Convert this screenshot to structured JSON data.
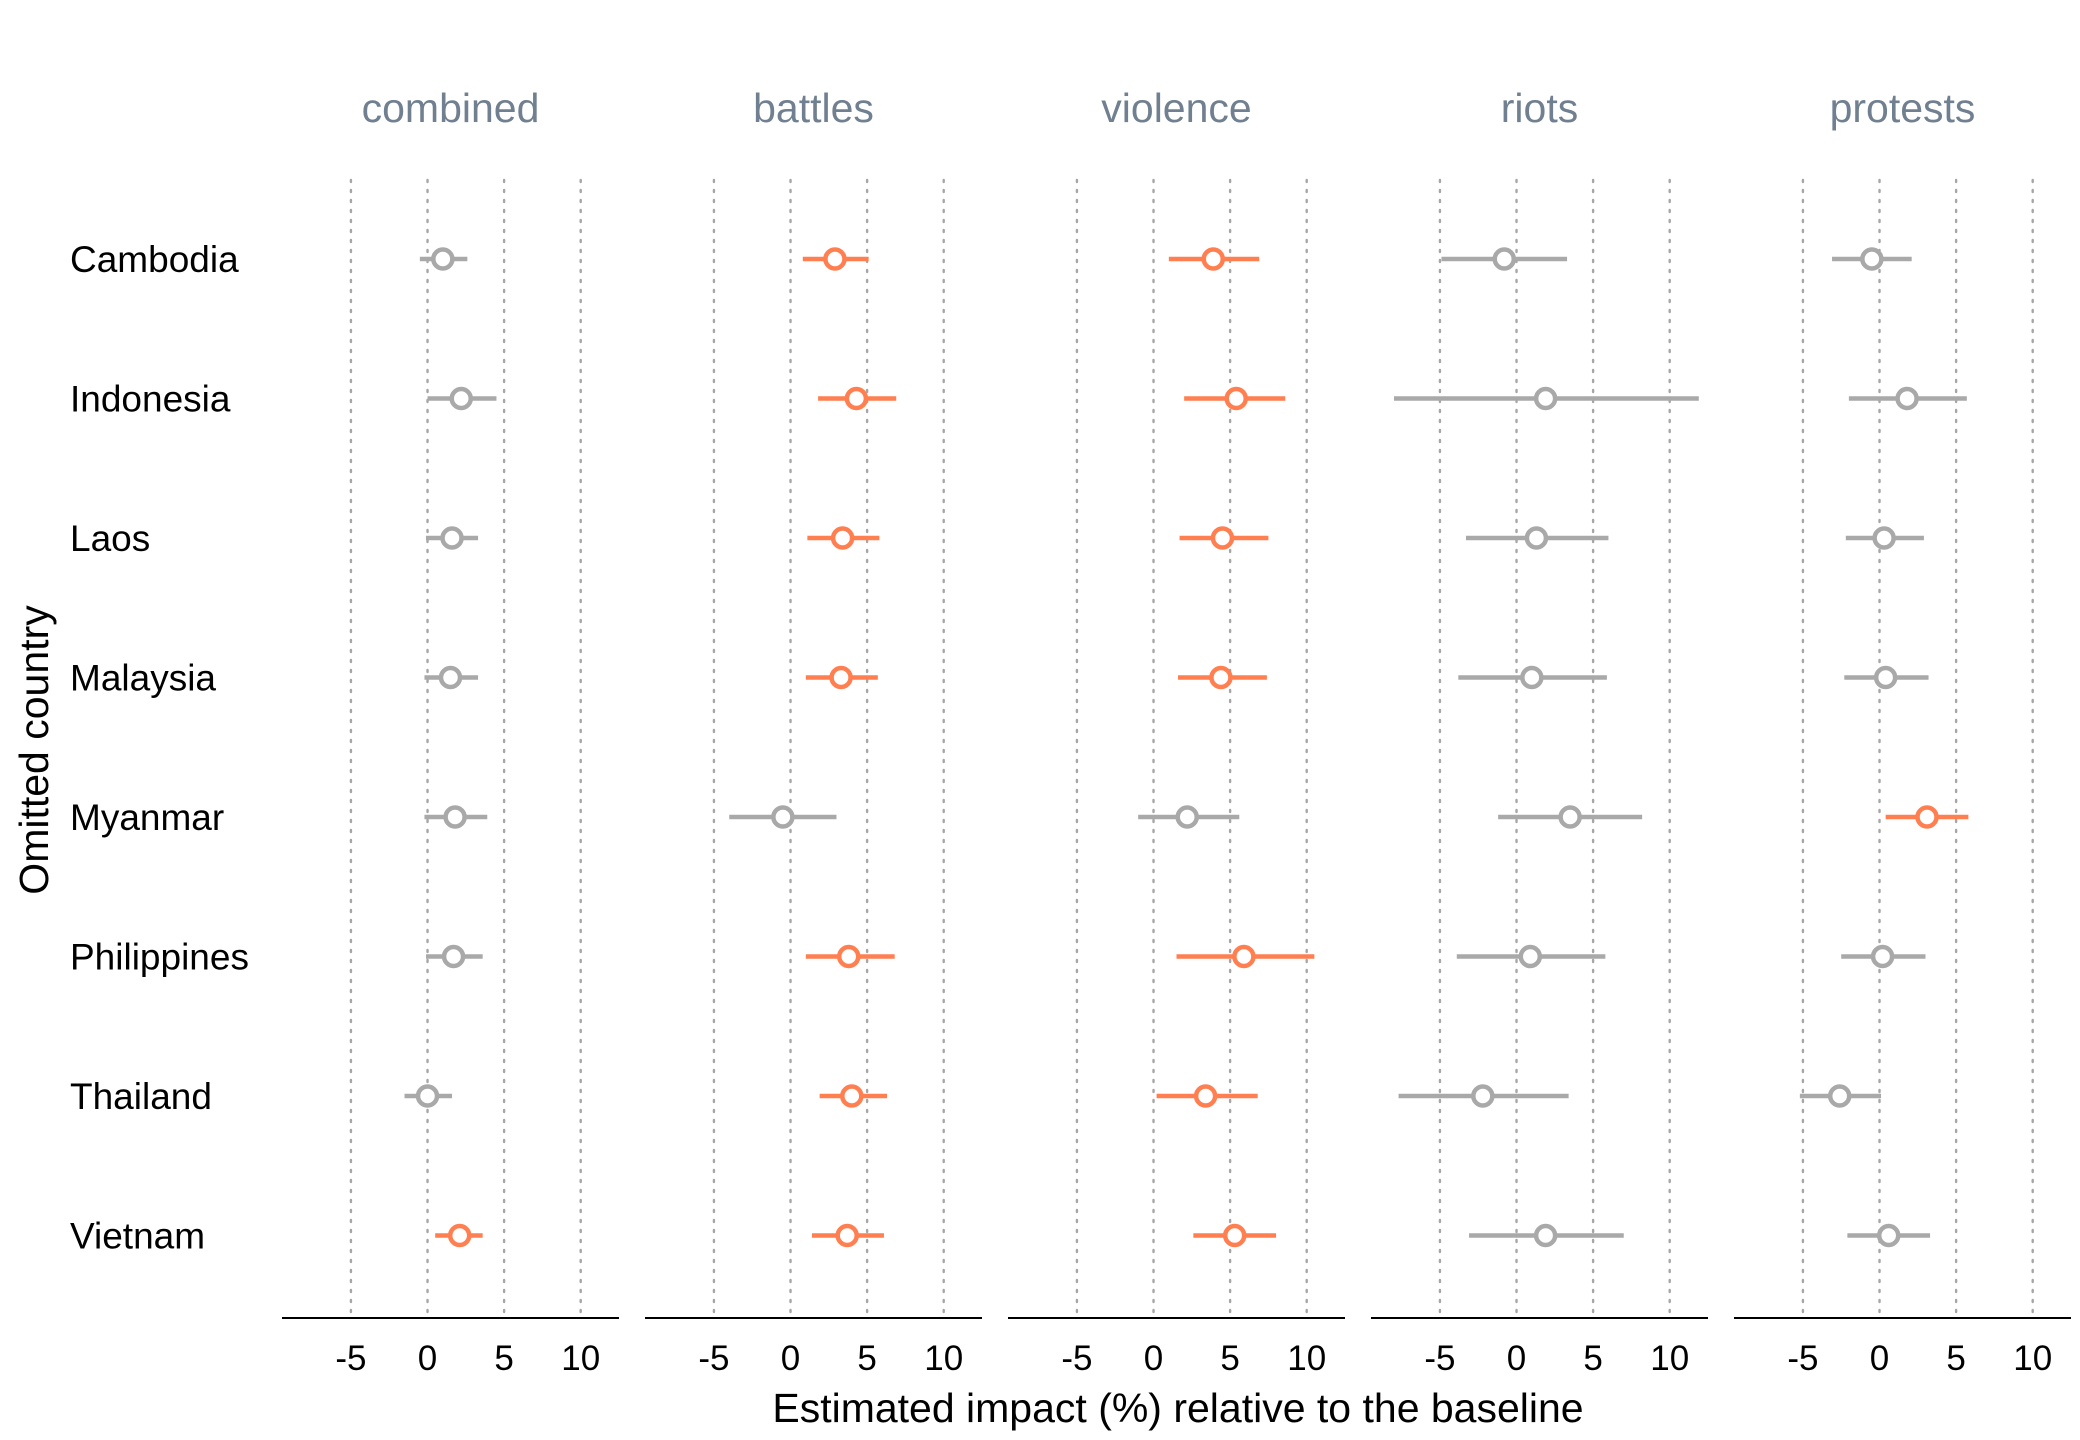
{
  "chart_data": {
    "type": "forest",
    "xlabel": "Estimated impact (%) relative to the baseline",
    "ylabel": "Omitted country",
    "xlim": [
      -9.5,
      12.5
    ],
    "xticks": [
      -5,
      0,
      5,
      10
    ],
    "grid": "vertical dotted",
    "colors": {
      "significant": "#ff7f50",
      "not_significant": "#a9a9a9"
    },
    "countries": [
      "Cambodia",
      "Indonesia",
      "Laos",
      "Malaysia",
      "Myanmar",
      "Philippines",
      "Thailand",
      "Vietnam"
    ],
    "panels": [
      {
        "title": "combined",
        "points": [
          {
            "est": 1.0,
            "lo": -0.5,
            "hi": 2.6,
            "significant": false
          },
          {
            "est": 2.2,
            "lo": 0.0,
            "hi": 4.5,
            "significant": false
          },
          {
            "est": 1.6,
            "lo": -0.1,
            "hi": 3.3,
            "significant": false
          },
          {
            "est": 1.5,
            "lo": -0.2,
            "hi": 3.3,
            "significant": false
          },
          {
            "est": 1.8,
            "lo": -0.2,
            "hi": 3.9,
            "significant": false
          },
          {
            "est": 1.7,
            "lo": -0.1,
            "hi": 3.6,
            "significant": false
          },
          {
            "est": 0.0,
            "lo": -1.5,
            "hi": 1.6,
            "significant": false
          },
          {
            "est": 2.1,
            "lo": 0.5,
            "hi": 3.6,
            "significant": true
          }
        ]
      },
      {
        "title": "battles",
        "points": [
          {
            "est": 2.9,
            "lo": 0.8,
            "hi": 5.1,
            "significant": true
          },
          {
            "est": 4.3,
            "lo": 1.8,
            "hi": 6.9,
            "significant": true
          },
          {
            "est": 3.4,
            "lo": 1.1,
            "hi": 5.8,
            "significant": true
          },
          {
            "est": 3.3,
            "lo": 1.0,
            "hi": 5.7,
            "significant": true
          },
          {
            "est": -0.5,
            "lo": -4.0,
            "hi": 3.0,
            "significant": false
          },
          {
            "est": 3.8,
            "lo": 1.0,
            "hi": 6.8,
            "significant": true
          },
          {
            "est": 4.0,
            "lo": 1.9,
            "hi": 6.3,
            "significant": true
          },
          {
            "est": 3.7,
            "lo": 1.4,
            "hi": 6.1,
            "significant": true
          }
        ]
      },
      {
        "title": "violence",
        "points": [
          {
            "est": 3.9,
            "lo": 1.0,
            "hi": 6.9,
            "significant": true
          },
          {
            "est": 5.4,
            "lo": 2.0,
            "hi": 8.6,
            "significant": true
          },
          {
            "est": 4.5,
            "lo": 1.7,
            "hi": 7.5,
            "significant": true
          },
          {
            "est": 4.4,
            "lo": 1.6,
            "hi": 7.4,
            "significant": true
          },
          {
            "est": 2.2,
            "lo": -1.0,
            "hi": 5.6,
            "significant": false
          },
          {
            "est": 5.9,
            "lo": 1.5,
            "hi": 10.5,
            "significant": true
          },
          {
            "est": 3.4,
            "lo": 0.2,
            "hi": 6.8,
            "significant": true
          },
          {
            "est": 5.3,
            "lo": 2.6,
            "hi": 8.0,
            "significant": true
          }
        ]
      },
      {
        "title": "riots",
        "points": [
          {
            "est": -0.8,
            "lo": -4.9,
            "hi": 3.3,
            "significant": false
          },
          {
            "est": 1.9,
            "lo": -8.0,
            "hi": 11.9,
            "significant": false
          },
          {
            "est": 1.3,
            "lo": -3.3,
            "hi": 6.0,
            "significant": false
          },
          {
            "est": 1.0,
            "lo": -3.8,
            "hi": 5.9,
            "significant": false
          },
          {
            "est": 3.5,
            "lo": -1.2,
            "hi": 8.2,
            "significant": false
          },
          {
            "est": 0.9,
            "lo": -3.9,
            "hi": 5.8,
            "significant": false
          },
          {
            "est": -2.2,
            "lo": -7.7,
            "hi": 3.4,
            "significant": false
          },
          {
            "est": 1.9,
            "lo": -3.1,
            "hi": 7.0,
            "significant": false
          }
        ]
      },
      {
        "title": "protests",
        "points": [
          {
            "est": -0.5,
            "lo": -3.1,
            "hi": 2.1,
            "significant": false
          },
          {
            "est": 1.8,
            "lo": -2.0,
            "hi": 5.7,
            "significant": false
          },
          {
            "est": 0.3,
            "lo": -2.2,
            "hi": 2.9,
            "significant": false
          },
          {
            "est": 0.4,
            "lo": -2.3,
            "hi": 3.2,
            "significant": false
          },
          {
            "est": 3.1,
            "lo": 0.4,
            "hi": 5.8,
            "significant": true
          },
          {
            "est": 0.2,
            "lo": -2.5,
            "hi": 3.0,
            "significant": false
          },
          {
            "est": -2.6,
            "lo": -5.2,
            "hi": 0.1,
            "significant": false
          },
          {
            "est": 0.6,
            "lo": -2.1,
            "hi": 3.3,
            "significant": false
          }
        ]
      }
    ]
  }
}
